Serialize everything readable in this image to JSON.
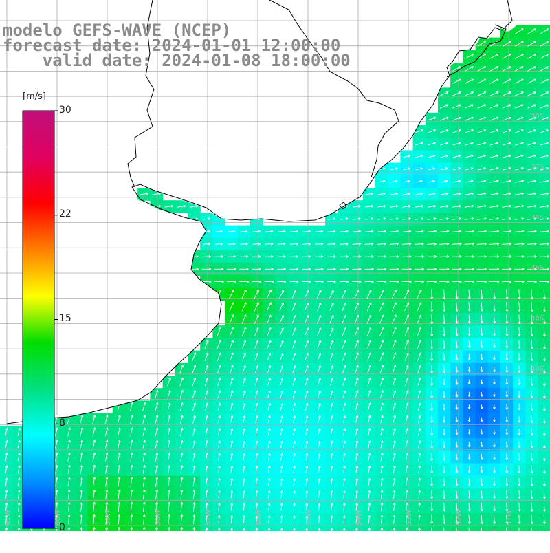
{
  "title": {
    "line1": "modelo GEFS-WAVE (NCEP)",
    "line2": "forecast date: 2024-01-01 12:00:00",
    "line3": "    valid date: 2024-01-08 18:00:00"
  },
  "colorbar": {
    "unit": "[m/s]",
    "min": 0,
    "max": 30,
    "tick_labels": [
      "30",
      "22",
      "15",
      "8",
      "0"
    ],
    "tick_values": [
      30,
      22.5,
      15,
      7.5,
      0
    ],
    "stops": [
      "#0000ff",
      "#0090ff",
      "#00ffff",
      "#00e080",
      "#00dd00",
      "#ffff00",
      "#ff8000",
      "#ff0000",
      "#e00060",
      "#c0107a"
    ]
  },
  "map": {
    "variable": "wind speed",
    "lon_range": [
      -61,
      -50
    ],
    "lat_range": [
      -41,
      -28
    ],
    "lat_labels": [
      "30S",
      "32S",
      "34S",
      "36S",
      "38S",
      "40S"
    ],
    "lon_labels": [
      "61W",
      "60W",
      "59W",
      "58W",
      "57W",
      "56W",
      "55W",
      "54W",
      "53W",
      "52W",
      "51W"
    ],
    "land_color": "#ffffff",
    "grid_color": "#aaaaaa",
    "arrow_color": "#ffffff",
    "coast_color": "#000000"
  }
}
